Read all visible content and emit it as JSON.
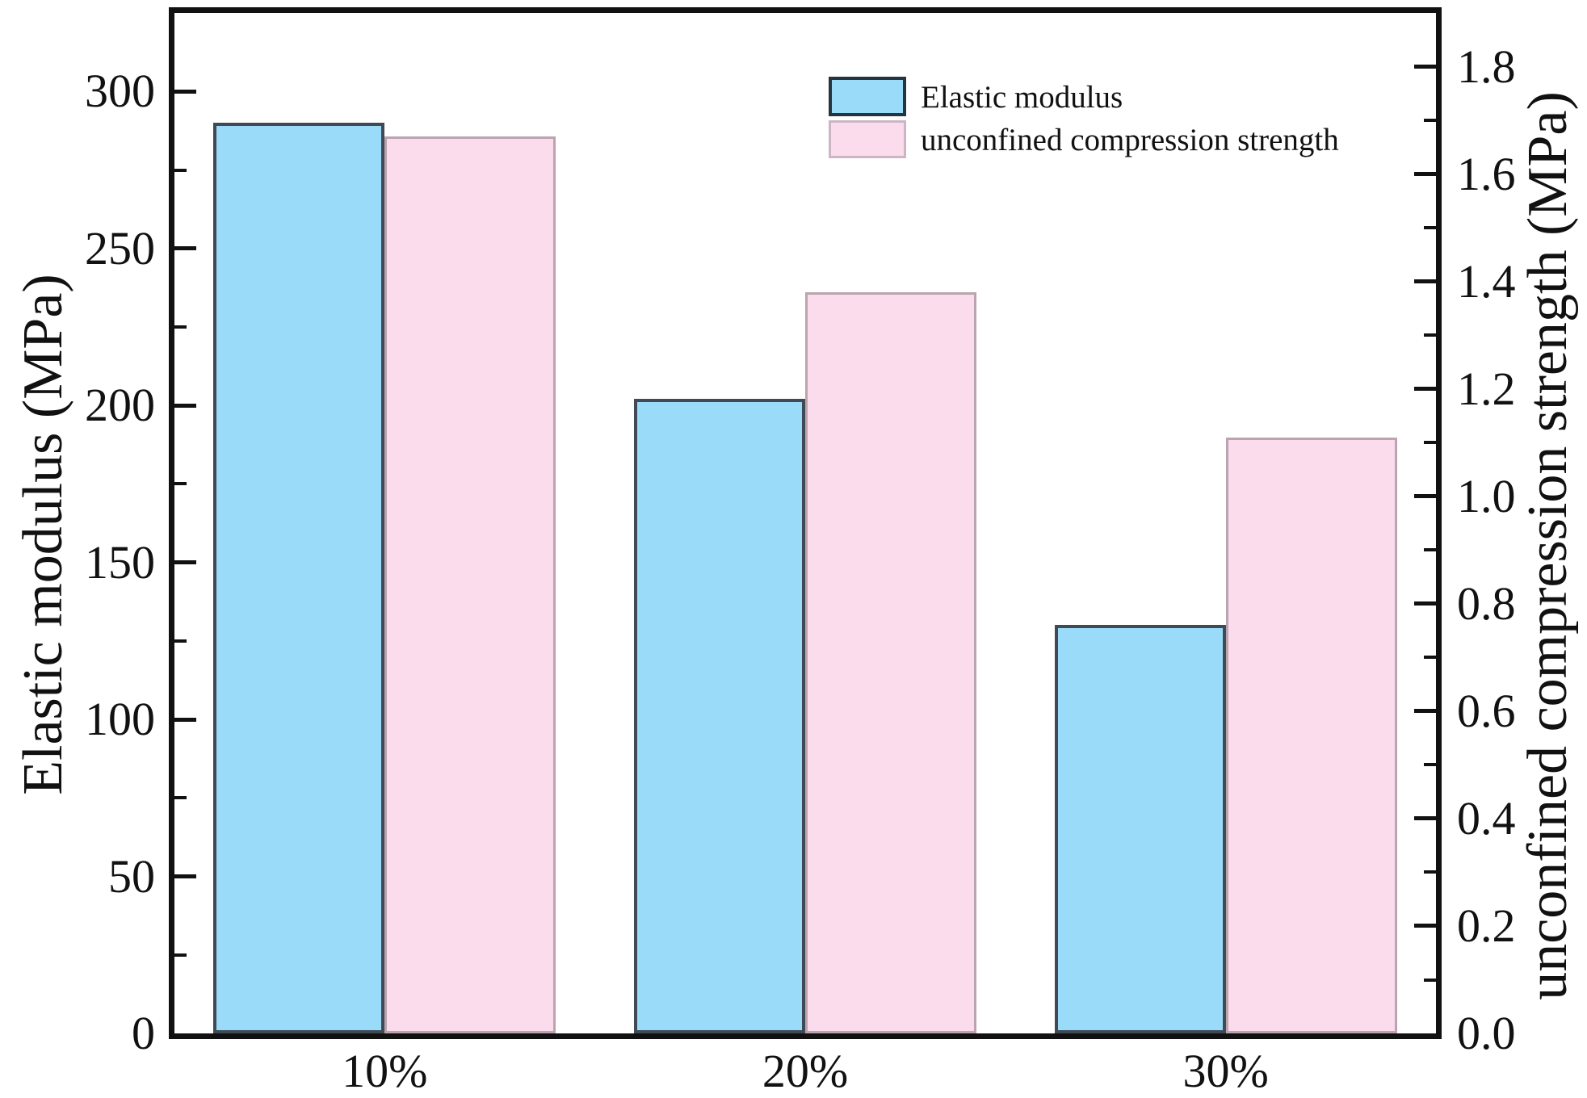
{
  "chart_data": {
    "type": "bar",
    "categories": [
      "10%",
      "20%",
      "30%"
    ],
    "series": [
      {
        "name": "Elastic modulus",
        "key": "elastic-modulus",
        "axis": "left",
        "values": [
          290,
          202,
          130
        ],
        "fill": "#9bdbfa",
        "border": "#3f4a54"
      },
      {
        "name": "unconfined compression strength",
        "key": "unconfined-compression-strength",
        "axis": "right",
        "values": [
          1.67,
          1.38,
          1.11
        ],
        "fill": "#fbdcec",
        "border": "#bba4b0"
      }
    ],
    "left_axis": {
      "label": "Elastic modulus (MPa)",
      "min": 0,
      "max": 325,
      "major_ticks": [
        0,
        50,
        100,
        150,
        200,
        250,
        300
      ],
      "tick_labels": [
        "0",
        "50",
        "100",
        "150",
        "200",
        "250",
        "300"
      ],
      "minor_step": 25
    },
    "right_axis": {
      "label": "unconfined compression strength (MPa)",
      "min": 0,
      "max": 1.9,
      "major_ticks": [
        0,
        0.2,
        0.4,
        0.6,
        0.8,
        1.0,
        1.2,
        1.4,
        1.6,
        1.8
      ],
      "tick_labels": [
        "0.0",
        "0.2",
        "0.4",
        "0.6",
        "0.8",
        "1.0",
        "1.2",
        "1.4",
        "1.6",
        "1.8"
      ],
      "minor_step": 0.1
    },
    "legend": {
      "position": "top-center",
      "entries": [
        "Elastic modulus",
        "unconfined compression strength"
      ]
    },
    "grid": false,
    "frame_color": "#111111",
    "background": "#ffffff"
  }
}
